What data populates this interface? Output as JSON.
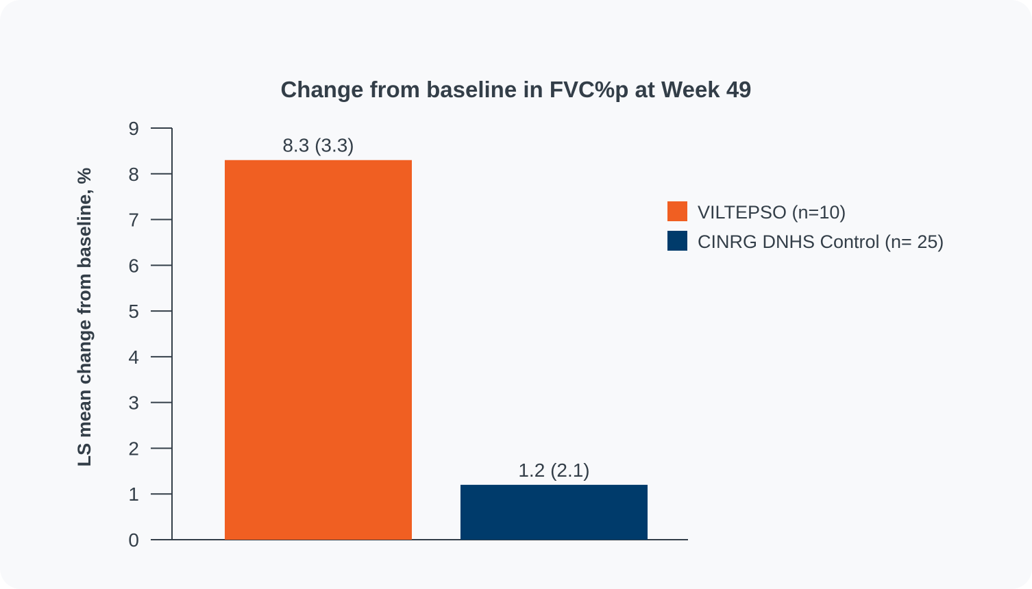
{
  "chart_data": {
    "type": "bar",
    "title": "Change from baseline in FVC%p at Week 49",
    "xlabel": "",
    "ylabel": "LS mean change from baseline, %",
    "ylim": [
      0,
      9
    ],
    "yticks": [
      "0",
      "1",
      "2",
      "3",
      "4",
      "5",
      "6",
      "7",
      "8",
      "9"
    ],
    "grid": false,
    "legend_position": "right",
    "series": [
      {
        "name": "VILTEPSO (n=10)",
        "value": 8.3,
        "label": "8.3 (3.3)",
        "color": "#f05f22"
      },
      {
        "name": "CINRG DNHS Control (n= 25)",
        "value": 1.2,
        "label": "1.2 (2.1)",
        "color": "#003b6b"
      }
    ]
  }
}
